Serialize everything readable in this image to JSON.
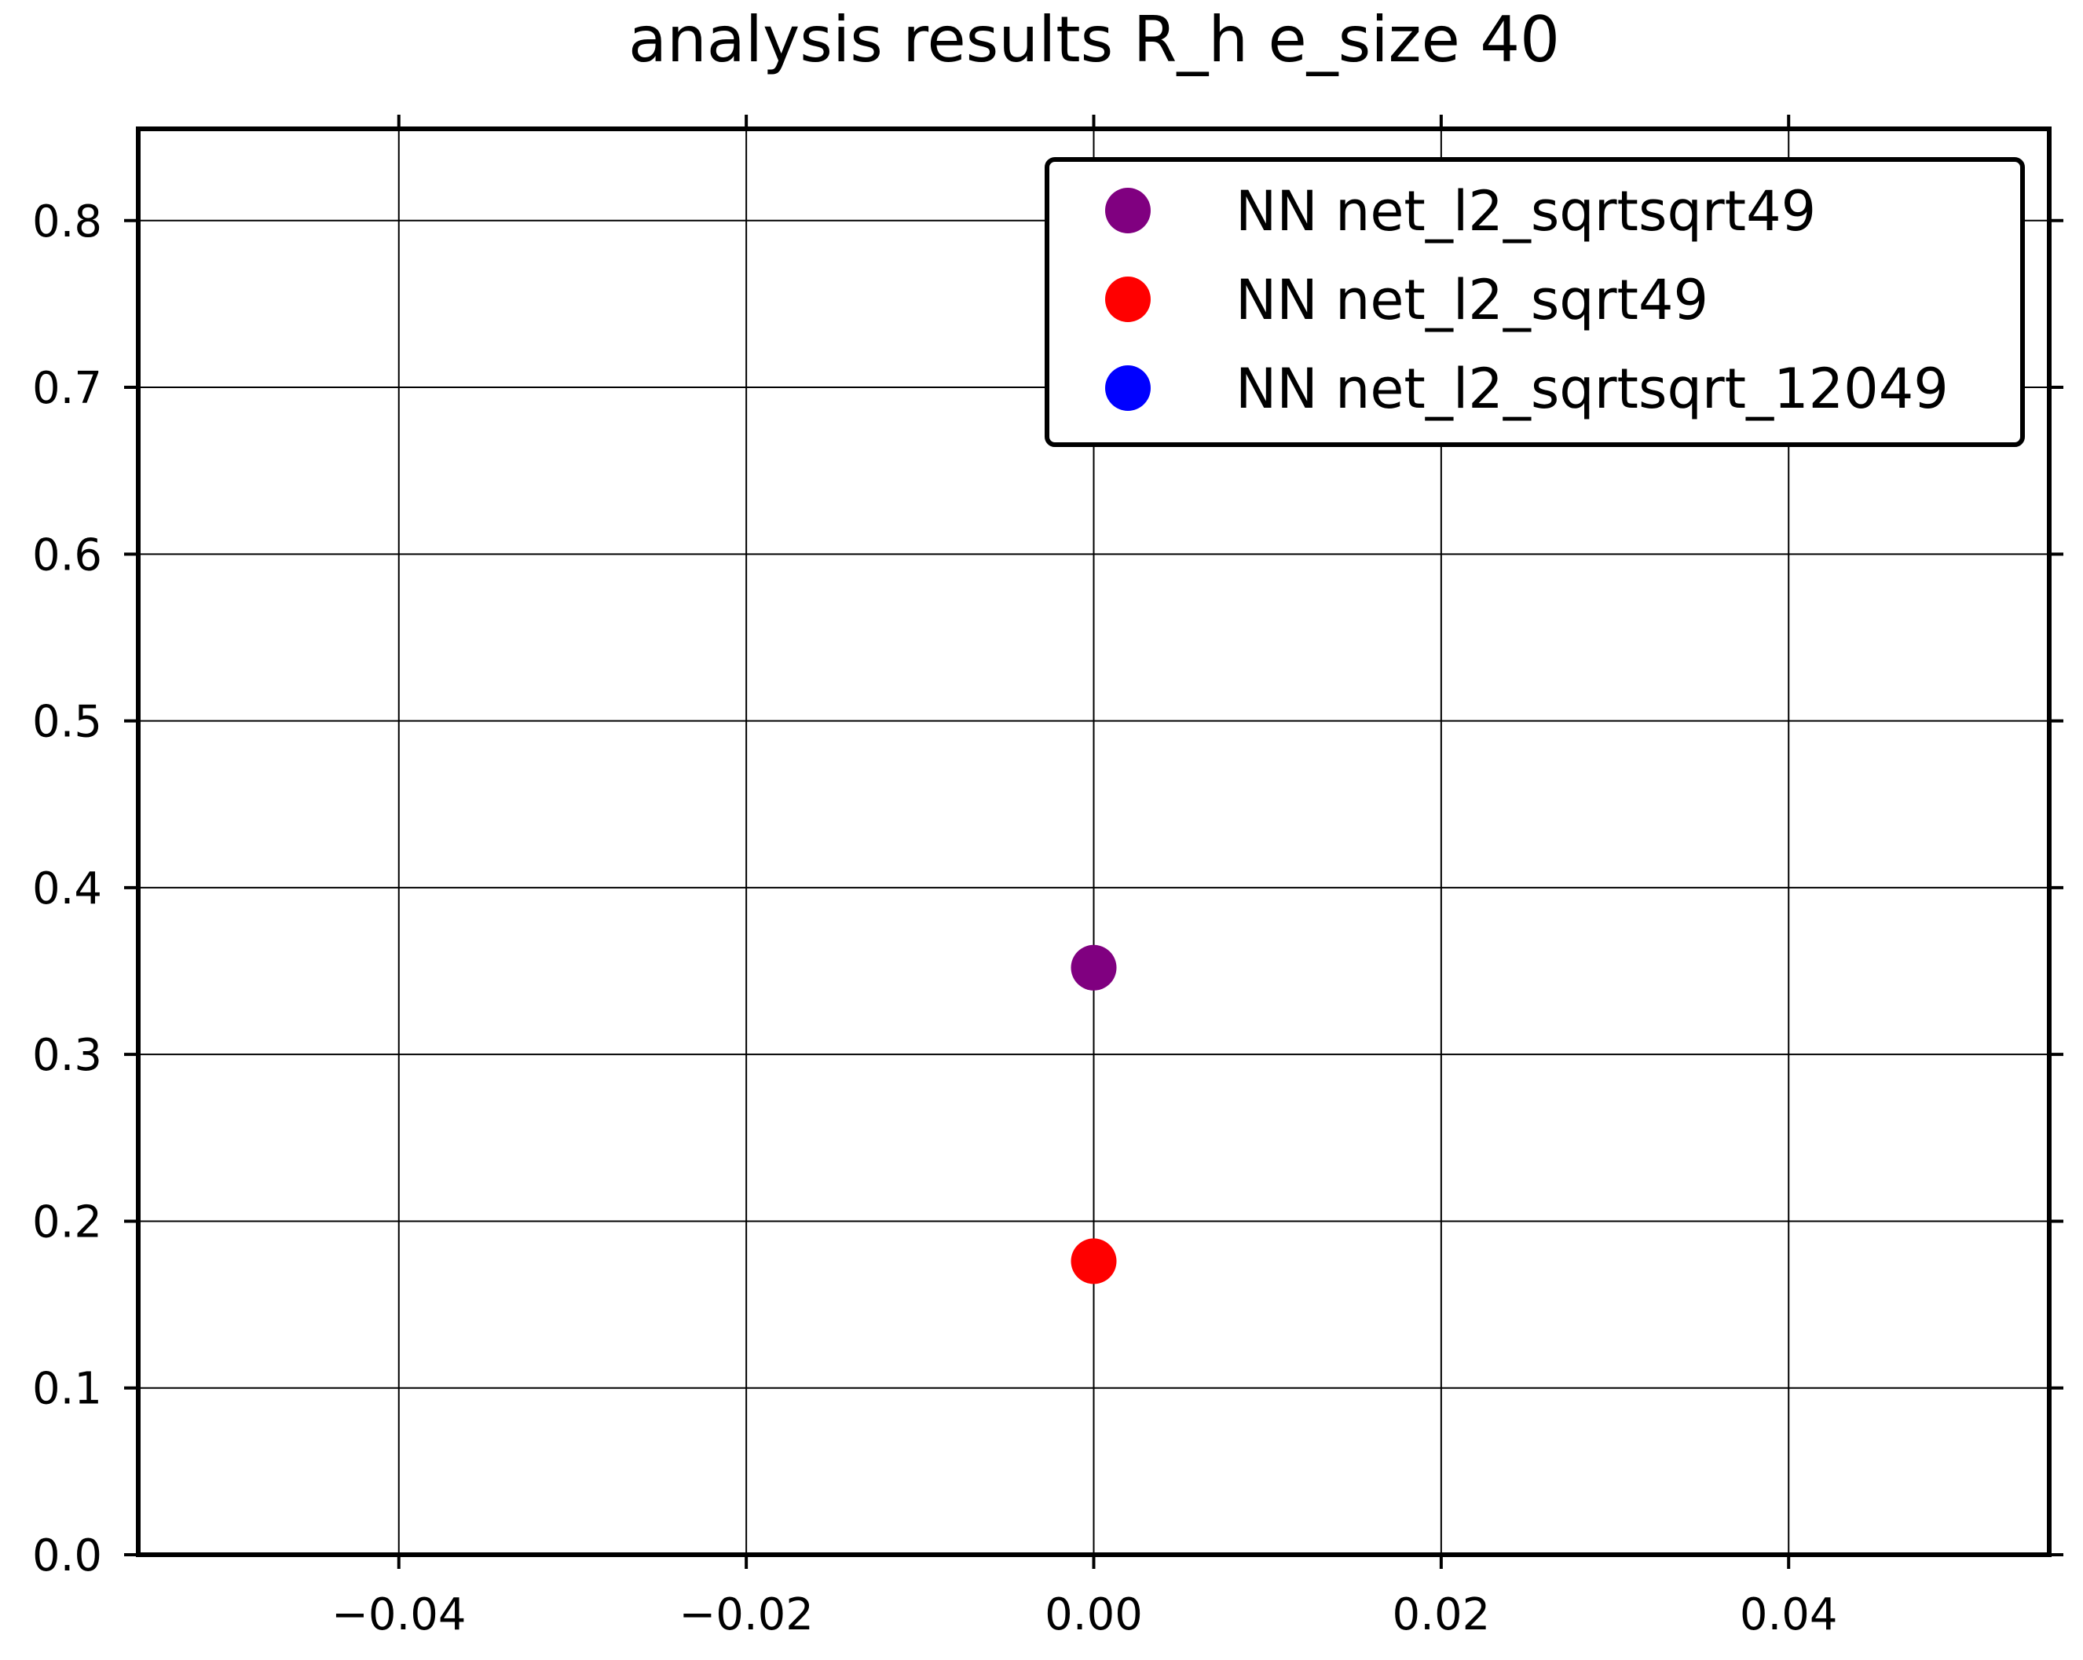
{
  "chart_data": {
    "type": "scatter",
    "title": "analysis results R_h  e_size 40",
    "xlabel": "",
    "ylabel": "",
    "xlim": [
      -0.055,
      0.055
    ],
    "ylim": [
      0.0,
      0.855
    ],
    "xticks": [
      -0.04,
      -0.02,
      0.0,
      0.02,
      0.04
    ],
    "xtick_labels": [
      "−0.04",
      "−0.02",
      "0.00",
      "0.02",
      "0.04"
    ],
    "yticks": [
      0.0,
      0.1,
      0.2,
      0.3,
      0.4,
      0.5,
      0.6,
      0.7,
      0.8
    ],
    "ytick_labels": [
      "0.0",
      "0.1",
      "0.2",
      "0.3",
      "0.4",
      "0.5",
      "0.6",
      "0.7",
      "0.8"
    ],
    "grid": true,
    "legend_position": "top-right",
    "series": [
      {
        "name": "NN net_l2_sqrtsqrt49",
        "color": "#800080",
        "points": [
          {
            "x": 0.0,
            "y": 0.352
          }
        ]
      },
      {
        "name": "NN net_l2_sqrt49",
        "color": "#ff0000",
        "points": [
          {
            "x": 0.0,
            "y": 0.176
          }
        ]
      },
      {
        "name": "NN net_l2_sqrtsqrt_12049",
        "color": "#0000ff",
        "points": []
      }
    ]
  }
}
